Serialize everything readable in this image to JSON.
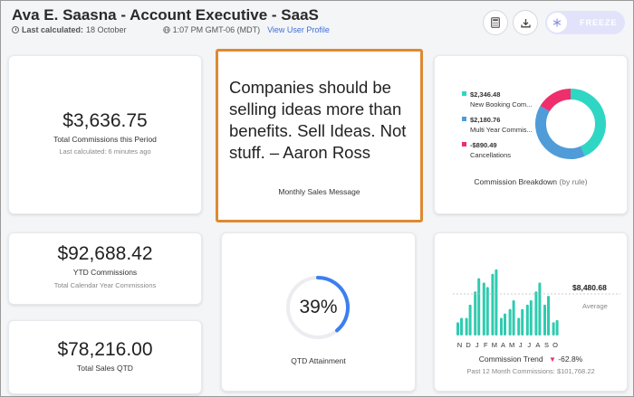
{
  "header": {
    "title": "Ava E. Saasna - Account Executive - SaaS",
    "last_calculated_label": "Last calculated:",
    "last_calculated_value": "18 October",
    "time_value": "1:07 PM GMT-06 (MDT)",
    "view_profile_link": "View User Profile",
    "freeze_label": "FREEZE",
    "icons": [
      "clock-icon",
      "globe-icon",
      "calculator-icon",
      "download-icon",
      "snowflake-icon"
    ]
  },
  "total_commissions": {
    "value": "$3,636.75",
    "label": "Total Commissions this Period",
    "sub": "Last calculated: 6 minutes ago"
  },
  "quote": {
    "text": "Companies should be selling ideas more than benefits. Sell Ideas. Not stuff. – Aaron Ross",
    "label": "Monthly Sales Message"
  },
  "commission_breakdown": {
    "label": "Commission Breakdown",
    "qualifier": "(by rule)",
    "items": [
      {
        "value": "$2,346.48",
        "name": "New Booking Com...",
        "color": "#2fd6c4",
        "amount": 2346.48
      },
      {
        "value": "$2,180.76",
        "name": "Multi Year Commis...",
        "color": "#4f9cd8",
        "amount": 2180.76
      },
      {
        "value": "-$890.49",
        "name": "Cancellations",
        "color": "#ee2f6c",
        "amount": 890.49
      }
    ]
  },
  "ytd": {
    "value": "$92,688.42",
    "label": "YTD Commissions",
    "sub": "Total Calendar Year Commissions"
  },
  "qtd_attainment": {
    "value": "39%",
    "fraction": 0.39,
    "label": "QTD Attainment",
    "color": "#3b7ff0"
  },
  "commission_trend": {
    "value_label": "$8,480.68",
    "average_label": "Average",
    "label": "Commission Trend",
    "change": "-62.8%",
    "sub": "Past 12 Month Commissions: $101,768.22",
    "bar_color": "#2fcbb0"
  },
  "total_sales_qtd": {
    "value": "$78,216.00",
    "label": "Total Sales QTD"
  },
  "chart_data": {
    "type": "bar",
    "categories": [
      "N",
      "D",
      "J",
      "F",
      "M",
      "A",
      "M",
      "J",
      "J",
      "A",
      "S",
      "O"
    ],
    "series": [
      {
        "values": [
          3,
          4,
          10,
          12,
          14,
          4,
          6,
          4,
          7,
          10,
          7,
          3
        ]
      },
      {
        "values": [
          4,
          7,
          13,
          11,
          15,
          5,
          8,
          6,
          8,
          12,
          9,
          3.5
        ]
      }
    ],
    "average_value": 8480.68
  }
}
